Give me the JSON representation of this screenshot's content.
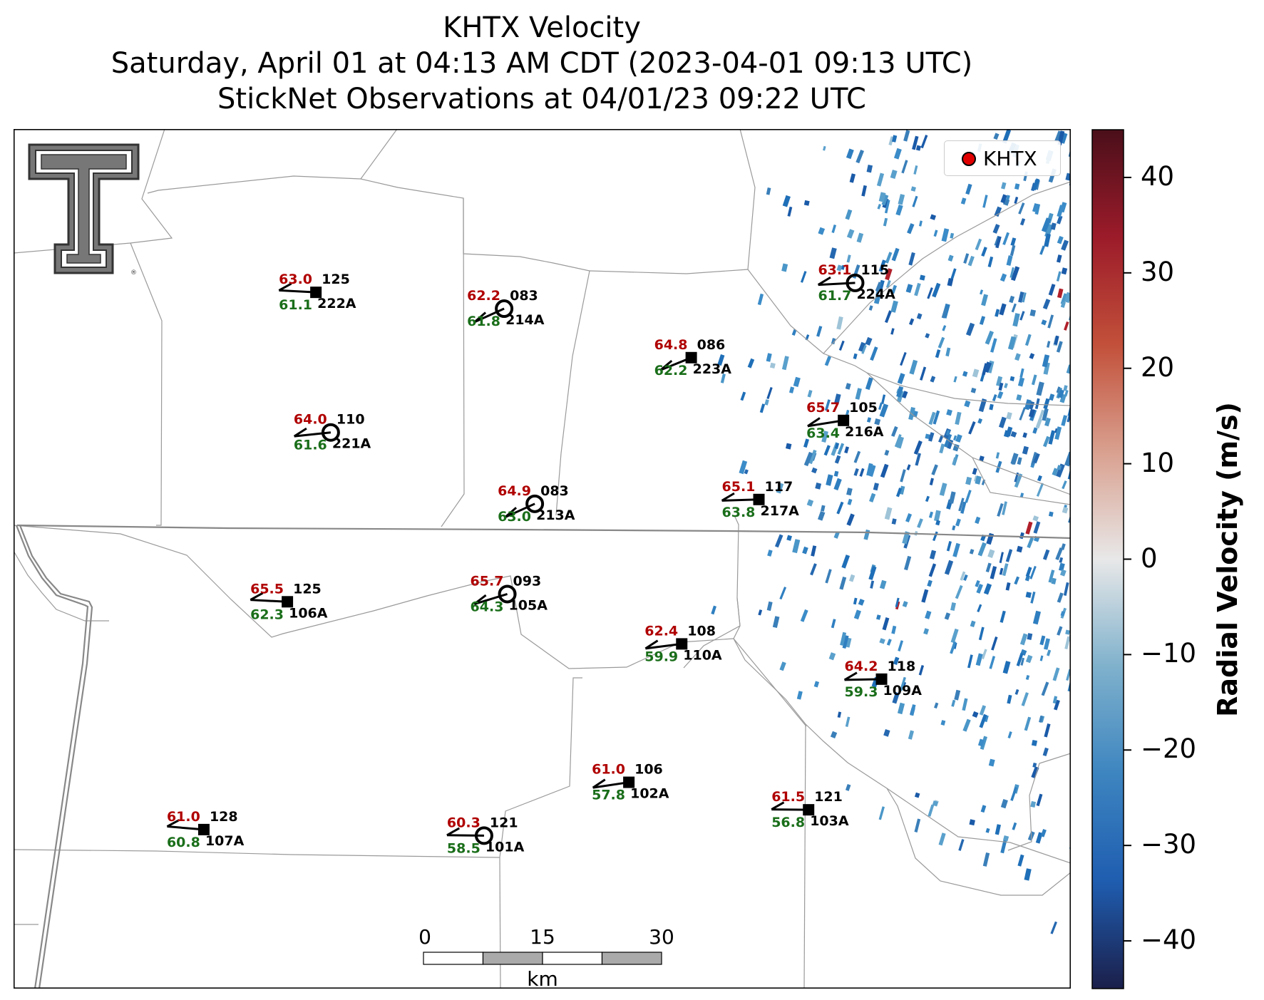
{
  "title": {
    "line1": "KHTX Velocity",
    "line2": "Saturday, April 01 at 04:13 AM CDT (2023-04-01 09:13 UTC)",
    "line3": "StickNet Observations at 04/01/23 09:22 UTC"
  },
  "legend": {
    "label": "KHTX",
    "color": "#e00000"
  },
  "colorbar": {
    "label": "Radial Velocity (m/s)",
    "ticks": [
      "40",
      "30",
      "20",
      "10",
      "0",
      "−10",
      "−20",
      "−30",
      "−40"
    ],
    "range": [
      -45,
      45
    ],
    "colors": [
      "#1b1f4a",
      "#1f5db0",
      "#3d85c0",
      "#7fb1cc",
      "#e8e8e8",
      "#d9a08f",
      "#c2503a",
      "#9c1b2a",
      "#4a0f1a"
    ]
  },
  "scale_bar": {
    "ticks": [
      "0",
      "15",
      "30"
    ],
    "unit": "km"
  },
  "logo": {
    "name": "texas-tech-double-t-logo",
    "text": "®"
  },
  "stations": [
    {
      "id": "222A",
      "temp": "63.0",
      "dew": "61.1",
      "dir": "125",
      "marker": "square",
      "lon": 0.286,
      "lat": 0.19
    },
    {
      "id": "214A",
      "temp": "62.2",
      "dew": "61.8",
      "dir": "083",
      "marker": "circle",
      "lon": 0.464,
      "lat": 0.209
    },
    {
      "id": "224A",
      "temp": "63.1",
      "dew": "61.7",
      "dir": "115",
      "marker": "circle",
      "lon": 0.796,
      "lat": 0.179
    },
    {
      "id": "223A",
      "temp": "64.8",
      "dew": "62.2",
      "dir": "086",
      "marker": "square",
      "lon": 0.641,
      "lat": 0.266
    },
    {
      "id": "221A",
      "temp": "64.0",
      "dew": "61.6",
      "dir": "110",
      "marker": "circle",
      "lon": 0.3,
      "lat": 0.353
    },
    {
      "id": "216A",
      "temp": "65.7",
      "dew": "63.4",
      "dir": "105",
      "marker": "square",
      "lon": 0.785,
      "lat": 0.339
    },
    {
      "id": "213A",
      "temp": "64.9",
      "dew": "63.0",
      "dir": "083",
      "marker": "circle",
      "lon": 0.493,
      "lat": 0.436
    },
    {
      "id": "217A",
      "temp": "65.1",
      "dew": "63.8",
      "dir": "117",
      "marker": "square",
      "lon": 0.705,
      "lat": 0.431
    },
    {
      "id": "106A",
      "temp": "65.5",
      "dew": "62.3",
      "dir": "125",
      "marker": "square",
      "lon": 0.259,
      "lat": 0.55
    },
    {
      "id": "105A",
      "temp": "65.7",
      "dew": "64.3",
      "dir": "093",
      "marker": "circle",
      "lon": 0.467,
      "lat": 0.541
    },
    {
      "id": "110A",
      "temp": "62.4",
      "dew": "59.9",
      "dir": "108",
      "marker": "square",
      "lon": 0.632,
      "lat": 0.599
    },
    {
      "id": "109A",
      "temp": "64.2",
      "dew": "59.3",
      "dir": "118",
      "marker": "square",
      "lon": 0.821,
      "lat": 0.64
    },
    {
      "id": "102A",
      "temp": "61.0",
      "dew": "57.8",
      "dir": "106",
      "marker": "square",
      "lon": 0.582,
      "lat": 0.76
    },
    {
      "id": "103A",
      "temp": "61.5",
      "dew": "56.8",
      "dir": "121",
      "marker": "square",
      "lon": 0.752,
      "lat": 0.792
    },
    {
      "id": "107A",
      "temp": "61.0",
      "dew": "60.8",
      "dir": "128",
      "marker": "square",
      "lon": 0.18,
      "lat": 0.815
    },
    {
      "id": "101A",
      "temp": "60.3",
      "dew": "58.5",
      "dir": "121",
      "marker": "circle",
      "lon": 0.445,
      "lat": 0.822
    }
  ]
}
